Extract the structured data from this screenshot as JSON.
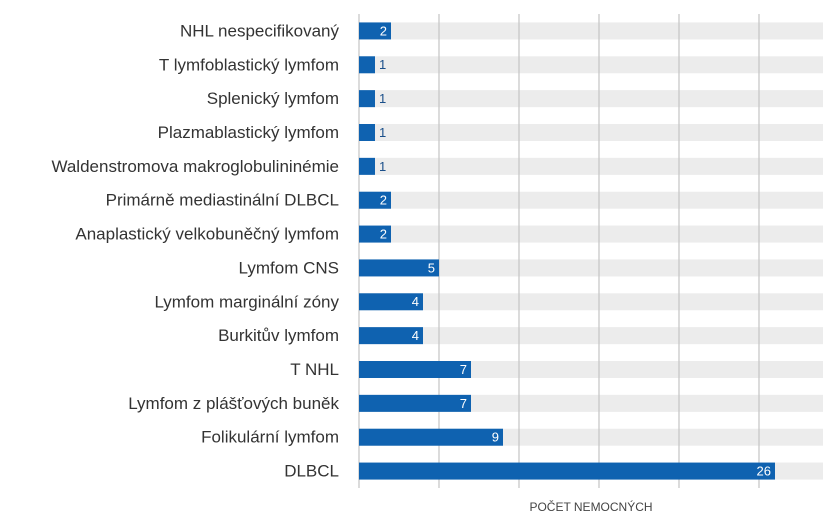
{
  "chart_data": {
    "type": "bar",
    "orientation": "horizontal",
    "categories": [
      "NHL nespecifikovaný",
      "T lymfoblastický lymfom",
      "Splenický lymfom",
      "Plazmablastický lymfom",
      "Waldenstromova makroglobulininémie",
      "Primárně mediastinální DLBCL",
      "Anaplastický velkobuněčný lymfom",
      "Lymfom CNS",
      "Lymfom marginální zóny",
      "Burkitův lymfom",
      "T NHL",
      "Lymfom z plášťových buněk",
      "Folikulární lymfom",
      "DLBCL"
    ],
    "values": [
      2,
      1,
      1,
      1,
      1,
      2,
      2,
      5,
      4,
      4,
      7,
      7,
      9,
      26
    ],
    "color": "#0f62b0",
    "xlabel": "POČET NEMOCNÝCH",
    "xlim": [
      0,
      29
    ],
    "xticks": [
      0,
      5,
      10,
      15,
      20,
      25
    ],
    "grid": true
  }
}
